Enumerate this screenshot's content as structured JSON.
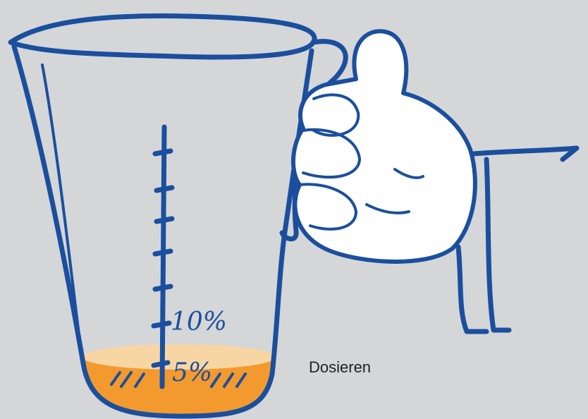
{
  "illustration": {
    "caption": "Dosieren",
    "scale_labels": [
      "10%",
      "5%"
    ]
  }
}
